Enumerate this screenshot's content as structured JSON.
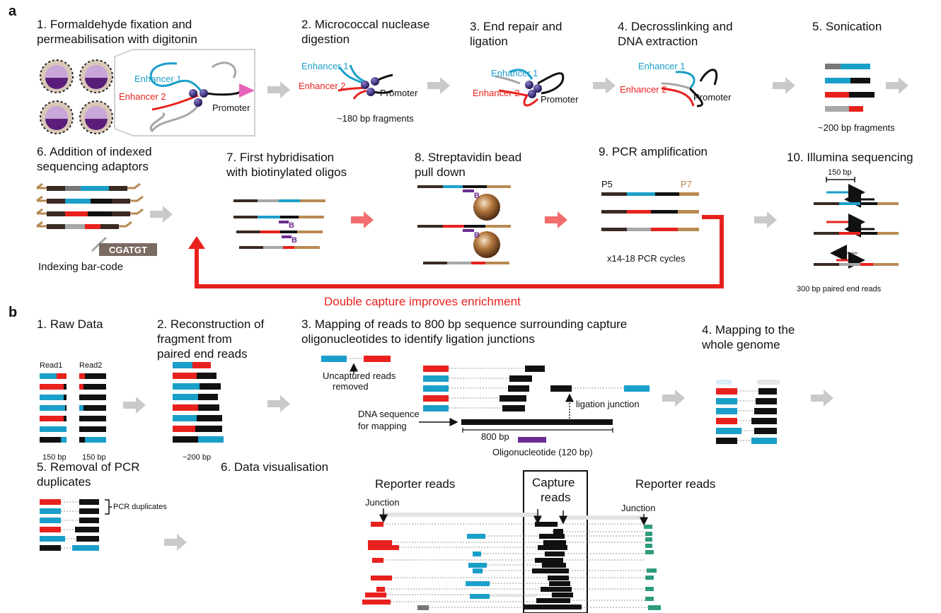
{
  "panel_a": {
    "label": "a",
    "steps": [
      {
        "l1": "1. Formaldehyde fixation and",
        "l2": "permeabilisation with digitonin"
      },
      {
        "l1": "2. Micrococcal nuclease",
        "l2": "digestion"
      },
      {
        "l1": "3. End repair and",
        "l2": "ligation"
      },
      {
        "l1": "4. Decrosslinking and",
        "l2": "DNA extraction"
      },
      {
        "l1": "5. Sonication",
        "l2": ""
      },
      {
        "l1": "6. Addition of indexed",
        "l2": "sequencing adaptors"
      },
      {
        "l1": "7. First hybridisation",
        "l2": "with biotinylated oligos"
      },
      {
        "l1": "8. Streptavidin bead",
        "l2": "pull down"
      },
      {
        "l1": "9. PCR amplification",
        "l2": ""
      },
      {
        "l1": "10. Illumina sequencing",
        "l2": ""
      }
    ],
    "enhancer1": "Enhancer 1",
    "enhancer2": "Enhancer 2",
    "promoter": "Promoter",
    "frag180": "~180 bp fragments",
    "frag200": "~200 bp fragments",
    "barcode": "CGATGT",
    "indexing": "Indexing bar-code",
    "biotin": "B",
    "p5": "P5",
    "p7": "P7",
    "pcr_cycles": "x14-18 PCR cycles",
    "bp150": "150 bp",
    "paired": "300 bp paired end reads",
    "double_capture": "Double capture improves enrichment"
  },
  "panel_b": {
    "label": "b",
    "steps": [
      {
        "l1": "1. Raw Data",
        "l2": "",
        "l3": ""
      },
      {
        "l1": "2. Reconstruction of",
        "l2": "fragment from",
        "l3": "paired end reads"
      },
      {
        "l1": "3. Mapping of reads to 800 bp sequence surrounding capture",
        "l2": "oligonucleotides to identify ligation junctions",
        "l3": ""
      },
      {
        "l1": "4. Mapping to the",
        "l2": "whole genome",
        "l3": ""
      },
      {
        "l1": "5. Removal of PCR",
        "l2": "duplicates",
        "l3": ""
      },
      {
        "l1": "6. Data visualisation",
        "l2": "",
        "l3": ""
      }
    ],
    "read1": "Read1",
    "read2": "Read2",
    "bp150a": "150 bp",
    "bp150b": "150 bp",
    "bp200": "~200 bp",
    "uncaptured1": "Uncaptured reads",
    "uncaptured2": "removed",
    "ligation_junction": "ligation junction",
    "dna_seq1": "DNA sequence",
    "dna_seq2": "for mapping",
    "bp800": "800 bp",
    "oligo": "Oligonucleotide (120 bp)",
    "pcr_dup": "PCR duplicates",
    "reporter_left": "Reporter reads",
    "capture1": "Capture",
    "capture2": "reads",
    "reporter_right": "Reporter reads",
    "junction_left": "Junction",
    "junction_right": "Junction"
  },
  "colors": {
    "blue": "#1a9fc9",
    "red": "#e8211d",
    "black": "#111111",
    "grey": "#a7a7a7",
    "tan": "#b98a53",
    "brown": "#3a2a22",
    "green": "#2e9b7e",
    "purple": "#6a2c91",
    "arrow_grey": "#c9c9c9",
    "arrow_pink": "#f26d6d"
  }
}
